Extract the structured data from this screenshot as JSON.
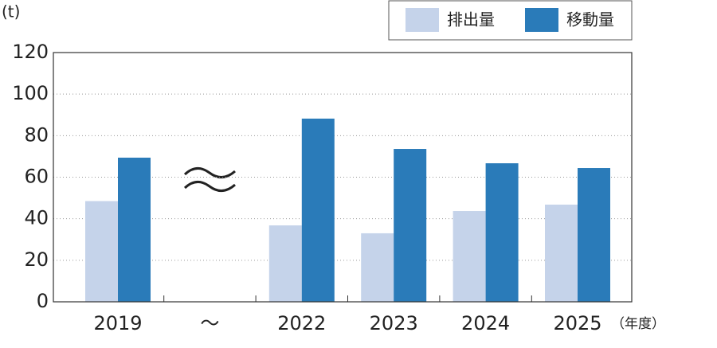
{
  "chart_data": {
    "type": "bar",
    "y_label": "(t)",
    "x_label": "（年度）",
    "categories": [
      "2019",
      "〜",
      "2022",
      "2023",
      "2024",
      "2025"
    ],
    "series": [
      {
        "name": "排出量",
        "color": "#c5d3ea",
        "values": [
          48.5,
          null,
          36.8,
          33.0,
          43.7,
          46.8
        ]
      },
      {
        "name": "移動量",
        "color": "#2a7bb9",
        "values": [
          69.4,
          null,
          88.2,
          73.6,
          66.7,
          64.4
        ]
      }
    ],
    "ylim": [
      0,
      120
    ],
    "yticks": [
      0,
      20,
      40,
      60,
      80,
      100,
      120
    ],
    "grid": true
  }
}
